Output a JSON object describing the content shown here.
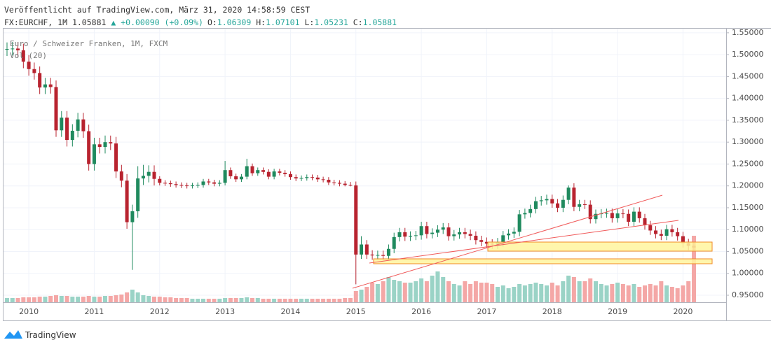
{
  "header": {
    "published": "Veröffentlicht auf TradingView.com, März 31, 2020 14:58:59 CEST",
    "symbol": "FX:EURCHF, 1M",
    "last": "1.05881",
    "change": "+0.00090 (+0.09%)",
    "ohlc": [
      {
        "label": "O:",
        "value": "1.06309"
      },
      {
        "label": "H:",
        "value": "1.07101"
      },
      {
        "label": "L:",
        "value": "1.05231"
      },
      {
        "label": "C:",
        "value": "1.05881"
      }
    ]
  },
  "footer": {
    "brand": "TradingView"
  },
  "chart_data": {
    "type": "candlestick",
    "title": "Euro / Schweizer Franken, 1M, FXCM",
    "volume_label": "Vol (20)",
    "up_color": "#1f8a5e",
    "down_color": "#b8232f",
    "volume_up_color": "#9ad3c6",
    "volume_down_color": "#f4a7a6",
    "grid": true,
    "ylim": [
      0.934,
      1.561
    ],
    "yticks": [
      {
        "value": 0.95,
        "label": "0.95000"
      },
      {
        "value": 1.0,
        "label": "1.00000"
      },
      {
        "value": 1.05,
        "label": "1.05000"
      },
      {
        "value": 1.1,
        "label": "1.10000"
      },
      {
        "value": 1.15,
        "label": "1.15000"
      },
      {
        "value": 1.2,
        "label": "1.20000"
      },
      {
        "value": 1.25,
        "label": "1.25000"
      },
      {
        "value": 1.3,
        "label": "1.30000"
      },
      {
        "value": 1.35,
        "label": "1.35000"
      },
      {
        "value": 1.4,
        "label": "1.40000"
      },
      {
        "value": 1.45,
        "label": "1.45000"
      },
      {
        "value": 1.5,
        "label": "1.50000"
      },
      {
        "value": 1.55,
        "label": "1.55000"
      }
    ],
    "categories": [
      null,
      null,
      null,
      null,
      "2010",
      null,
      null,
      null,
      null,
      null,
      null,
      null,
      null,
      null,
      null,
      null,
      "2011",
      null,
      null,
      null,
      null,
      null,
      null,
      null,
      null,
      null,
      null,
      null,
      "2012",
      null,
      null,
      null,
      null,
      null,
      null,
      null,
      null,
      null,
      null,
      null,
      "2013",
      null,
      null,
      null,
      null,
      null,
      null,
      null,
      null,
      null,
      null,
      null,
      "2014",
      null,
      null,
      null,
      null,
      null,
      null,
      null,
      null,
      null,
      null,
      null,
      "2015",
      null,
      null,
      null,
      null,
      null,
      null,
      null,
      null,
      null,
      null,
      null,
      "2016",
      null,
      null,
      null,
      null,
      null,
      null,
      null,
      null,
      null,
      null,
      null,
      "2017",
      null,
      null,
      null,
      null,
      null,
      null,
      null,
      null,
      null,
      null,
      null,
      "2018",
      null,
      null,
      null,
      null,
      null,
      null,
      null,
      null,
      null,
      null,
      null,
      "2019",
      null,
      null,
      null,
      null,
      null,
      null,
      null,
      null,
      null,
      null,
      null,
      "2020",
      null,
      null
    ],
    "open": [
      1.512,
      1.513,
      1.514,
      1.51,
      1.484,
      1.467,
      1.458,
      1.425,
      1.432,
      1.426,
      1.327,
      1.356,
      1.305,
      1.326,
      1.352,
      1.325,
      1.25,
      1.295,
      1.289,
      1.3,
      1.297,
      1.233,
      1.212,
      1.117,
      1.142,
      1.217,
      1.223,
      1.232,
      1.216,
      1.207,
      1.206,
      1.204,
      1.202,
      1.201,
      1.2,
      1.201,
      1.202,
      1.21,
      1.208,
      1.205,
      1.207,
      1.236,
      1.222,
      1.215,
      1.221,
      1.245,
      1.229,
      1.236,
      1.232,
      1.221,
      1.233,
      1.23,
      1.227,
      1.22,
      1.217,
      1.218,
      1.22,
      1.219,
      1.215,
      1.214,
      1.208,
      1.207,
      1.205,
      1.202,
      1.201,
      1.043,
      1.066,
      1.043,
      1.041,
      1.042,
      1.04,
      1.056,
      1.083,
      1.094,
      1.084,
      1.086,
      1.087,
      1.108,
      1.09,
      1.093,
      1.1,
      1.105,
      1.085,
      1.089,
      1.094,
      1.09,
      1.086,
      1.076,
      1.072,
      1.068,
      1.066,
      1.071,
      1.087,
      1.091,
      1.095,
      1.135,
      1.138,
      1.147,
      1.165,
      1.167,
      1.17,
      1.16,
      1.15,
      1.168,
      1.196,
      1.152,
      1.158,
      1.157,
      1.124,
      1.136,
      1.137,
      1.138,
      1.126,
      1.137,
      1.136,
      1.118,
      1.141,
      1.126,
      1.11,
      1.098,
      1.09,
      1.086,
      1.101,
      1.094,
      1.085,
      1.069,
      1.063
    ],
    "high": [
      1.528,
      1.529,
      1.529,
      1.525,
      1.499,
      1.482,
      1.473,
      1.447,
      1.447,
      1.441,
      1.371,
      1.371,
      1.341,
      1.367,
      1.367,
      1.34,
      1.31,
      1.31,
      1.315,
      1.315,
      1.312,
      1.248,
      1.227,
      1.157,
      1.245,
      1.248,
      1.247,
      1.247,
      1.222,
      1.213,
      1.212,
      1.21,
      1.208,
      1.207,
      1.207,
      1.208,
      1.216,
      1.216,
      1.214,
      1.213,
      1.257,
      1.242,
      1.228,
      1.227,
      1.262,
      1.251,
      1.242,
      1.242,
      1.238,
      1.239,
      1.239,
      1.236,
      1.233,
      1.226,
      1.224,
      1.226,
      1.226,
      1.225,
      1.221,
      1.22,
      1.214,
      1.213,
      1.211,
      1.209,
      1.21,
      1.085,
      1.076,
      1.053,
      1.052,
      1.052,
      1.066,
      1.093,
      1.104,
      1.104,
      1.096,
      1.097,
      1.118,
      1.118,
      1.103,
      1.11,
      1.115,
      1.115,
      1.099,
      1.104,
      1.104,
      1.1,
      1.096,
      1.086,
      1.082,
      1.078,
      1.081,
      1.097,
      1.101,
      1.105,
      1.145,
      1.148,
      1.157,
      1.175,
      1.177,
      1.18,
      1.18,
      1.17,
      1.178,
      1.201,
      1.206,
      1.168,
      1.168,
      1.167,
      1.146,
      1.147,
      1.148,
      1.148,
      1.147,
      1.147,
      1.146,
      1.151,
      1.151,
      1.136,
      1.12,
      1.108,
      1.1,
      1.111,
      1.111,
      1.104,
      1.095,
      1.079,
      1.071
    ],
    "low": [
      1.497,
      1.498,
      1.495,
      1.469,
      1.452,
      1.443,
      1.41,
      1.41,
      1.411,
      1.312,
      1.312,
      1.29,
      1.29,
      1.311,
      1.31,
      1.235,
      1.235,
      1.274,
      1.274,
      1.282,
      1.218,
      1.197,
      1.102,
      1.008,
      1.127,
      1.202,
      1.208,
      1.201,
      1.201,
      1.2,
      1.198,
      1.196,
      1.195,
      1.194,
      1.194,
      1.195,
      1.196,
      1.202,
      1.199,
      1.199,
      1.201,
      1.216,
      1.209,
      1.209,
      1.215,
      1.223,
      1.223,
      1.226,
      1.215,
      1.215,
      1.224,
      1.221,
      1.214,
      1.211,
      1.211,
      1.212,
      1.213,
      1.209,
      1.208,
      1.202,
      1.201,
      1.199,
      1.199,
      1.199,
      0.975,
      1.033,
      1.033,
      1.031,
      1.031,
      1.03,
      1.03,
      1.046,
      1.073,
      1.074,
      1.074,
      1.076,
      1.077,
      1.08,
      1.08,
      1.083,
      1.09,
      1.075,
      1.075,
      1.079,
      1.08,
      1.076,
      1.066,
      1.062,
      1.058,
      1.056,
      1.056,
      1.061,
      1.077,
      1.081,
      1.085,
      1.125,
      1.128,
      1.137,
      1.155,
      1.157,
      1.15,
      1.14,
      1.14,
      1.158,
      1.142,
      1.142,
      1.147,
      1.114,
      1.114,
      1.126,
      1.127,
      1.116,
      1.116,
      1.126,
      1.108,
      1.108,
      1.116,
      1.1,
      1.088,
      1.08,
      1.076,
      1.076,
      1.084,
      1.075,
      1.059,
      1.053,
      1.052
    ],
    "close": [
      1.513,
      1.514,
      1.51,
      1.484,
      1.467,
      1.458,
      1.425,
      1.432,
      1.426,
      1.327,
      1.356,
      1.305,
      1.326,
      1.352,
      1.325,
      1.25,
      1.295,
      1.289,
      1.3,
      1.297,
      1.233,
      1.212,
      1.117,
      1.142,
      1.217,
      1.223,
      1.232,
      1.216,
      1.207,
      1.206,
      1.204,
      1.202,
      1.201,
      1.2,
      1.201,
      1.202,
      1.21,
      1.208,
      1.205,
      1.207,
      1.236,
      1.222,
      1.215,
      1.221,
      1.245,
      1.229,
      1.236,
      1.232,
      1.221,
      1.233,
      1.23,
      1.227,
      1.22,
      1.217,
      1.218,
      1.22,
      1.219,
      1.215,
      1.214,
      1.208,
      1.207,
      1.205,
      1.202,
      1.201,
      1.043,
      1.066,
      1.043,
      1.041,
      1.042,
      1.04,
      1.056,
      1.083,
      1.094,
      1.084,
      1.086,
      1.087,
      1.108,
      1.09,
      1.093,
      1.1,
      1.105,
      1.085,
      1.089,
      1.094,
      1.09,
      1.086,
      1.076,
      1.072,
      1.068,
      1.066,
      1.071,
      1.087,
      1.091,
      1.095,
      1.135,
      1.138,
      1.147,
      1.165,
      1.167,
      1.17,
      1.16,
      1.15,
      1.168,
      1.196,
      1.152,
      1.158,
      1.157,
      1.124,
      1.136,
      1.137,
      1.138,
      1.126,
      1.137,
      1.136,
      1.118,
      1.141,
      1.126,
      1.11,
      1.098,
      1.09,
      1.086,
      1.101,
      1.094,
      1.085,
      1.069,
      1.063,
      1.059
    ],
    "volume": [
      6,
      6,
      6,
      7,
      7,
      7,
      8,
      8,
      9,
      10,
      9,
      9,
      8,
      8,
      8,
      9,
      8,
      8,
      9,
      9,
      10,
      11,
      14,
      18,
      14,
      10,
      9,
      8,
      8,
      7,
      7,
      6,
      6,
      6,
      5,
      5,
      5,
      5,
      5,
      5,
      6,
      6,
      6,
      6,
      7,
      6,
      6,
      5,
      5,
      5,
      5,
      5,
      5,
      5,
      5,
      5,
      5,
      5,
      5,
      5,
      5,
      5,
      6,
      6,
      16,
      18,
      22,
      28,
      26,
      30,
      36,
      32,
      30,
      28,
      28,
      30,
      34,
      30,
      38,
      44,
      36,
      30,
      26,
      24,
      30,
      26,
      30,
      28,
      28,
      26,
      22,
      24,
      20,
      22,
      26,
      24,
      26,
      28,
      26,
      24,
      28,
      24,
      30,
      38,
      36,
      30,
      30,
      34,
      30,
      26,
      24,
      26,
      28,
      26,
      24,
      26,
      22,
      24,
      26,
      24,
      30,
      24,
      22,
      20,
      24,
      30,
      95
    ]
  }
}
